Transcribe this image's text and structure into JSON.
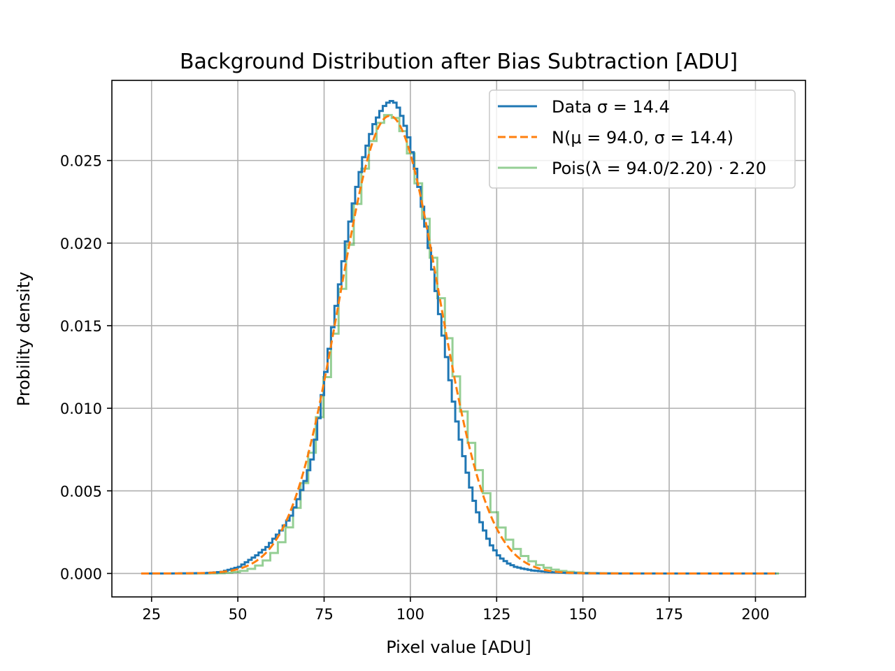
{
  "chart_data": {
    "type": "line",
    "title": "Background Distribution after Bias Subtraction [ADU]",
    "xlabel": "Pixel value [ADU]",
    "ylabel": "Probility density",
    "xlim": [
      13.5,
      214.5
    ],
    "ylim": [
      -0.00142,
      0.02985
    ],
    "xticks": [
      25,
      50,
      75,
      100,
      125,
      150,
      175,
      200
    ],
    "xtick_labels": [
      "25",
      "50",
      "75",
      "100",
      "125",
      "150",
      "175",
      "200"
    ],
    "yticks": [
      0.0,
      0.005,
      0.01,
      0.015,
      0.02,
      0.025
    ],
    "ytick_labels": [
      "0.000",
      "0.005",
      "0.010",
      "0.015",
      "0.020",
      "0.025"
    ],
    "grid": true,
    "legend_position": "top-right",
    "legend": [
      {
        "label": "Data σ = 14.4",
        "color": "#1f77b4",
        "style": "solid"
      },
      {
        "label": "N(μ = 94.0, σ = 14.4)",
        "color": "#ff7f0e",
        "style": "dashed"
      },
      {
        "label": "Pois(λ = 94.0/2.20) · 2.20",
        "color": "#2ca02c",
        "style": "solid-translucent"
      }
    ],
    "series": [
      {
        "kind": "step-histogram",
        "color": "#1f77b4",
        "bin_width": 1,
        "x_start": 22,
        "x_end": 206,
        "x": [
          22,
          30,
          40,
          45,
          50,
          55,
          58,
          60,
          62,
          65,
          67,
          69,
          71,
          72,
          73,
          74,
          75,
          76,
          77,
          78,
          79,
          80,
          81,
          82,
          83,
          84,
          85,
          86,
          87,
          88,
          89,
          90,
          91,
          92,
          93,
          94,
          95,
          96,
          97,
          98,
          99,
          100,
          101,
          102,
          103,
          104,
          105,
          106,
          107,
          108,
          109,
          110,
          111,
          112,
          113,
          114,
          115,
          116,
          117,
          118,
          119,
          120,
          121,
          122,
          123,
          124,
          125,
          126,
          128,
          130,
          132,
          135,
          140,
          145,
          150,
          160,
          170,
          205
        ],
        "y": [
          0.0,
          0.0,
          2e-05,
          0.0001,
          0.0004,
          0.0011,
          0.0016,
          0.0021,
          0.0026,
          0.0035,
          0.0045,
          0.0056,
          0.0069,
          0.0081,
          0.0094,
          0.0108,
          0.0122,
          0.0136,
          0.0149,
          0.0162,
          0.0175,
          0.0189,
          0.0201,
          0.0213,
          0.0224,
          0.0234,
          0.0243,
          0.0252,
          0.0259,
          0.0266,
          0.0272,
          0.0276,
          0.028,
          0.0283,
          0.0285,
          0.0286,
          0.0285,
          0.0282,
          0.0277,
          0.0271,
          0.0264,
          0.0255,
          0.0245,
          0.0234,
          0.0222,
          0.021,
          0.0197,
          0.0184,
          0.0171,
          0.0157,
          0.0144,
          0.0131,
          0.0117,
          0.0104,
          0.0092,
          0.0081,
          0.0071,
          0.0061,
          0.0052,
          0.0044,
          0.0037,
          0.0031,
          0.0026,
          0.0021,
          0.0017,
          0.0014,
          0.0011,
          0.0009,
          0.0006,
          0.0004,
          0.0003,
          0.00018,
          8e-05,
          3e-05,
          1e-05,
          0.0,
          0.0,
          0.0
        ]
      },
      {
        "kind": "curve",
        "color": "#ff7f0e",
        "x_start": 22,
        "x_end": 206,
        "mu": 94.0,
        "sigma": 14.4
      },
      {
        "kind": "step-histogram",
        "color": "#2ca02c",
        "bin_width": 2.2,
        "x_start": 22,
        "x_end": 206,
        "lambda": 42.727,
        "scale": 2.2
      }
    ]
  }
}
